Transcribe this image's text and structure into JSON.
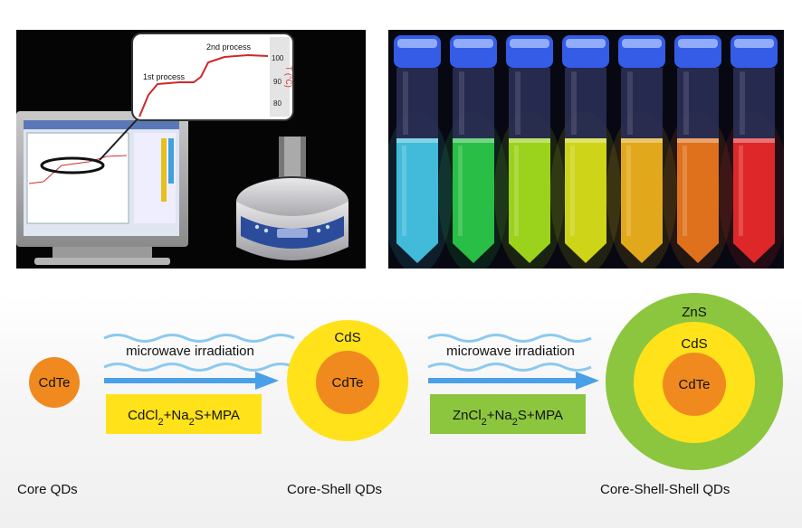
{
  "inset_plot": {
    "annotations": [
      "1st process",
      "2nd process"
    ],
    "y_ticks": [
      "100",
      "90",
      "80"
    ],
    "y_axis_label": "T (°C)"
  },
  "vials": {
    "colors": [
      "#45c9e8",
      "#2ccc4a",
      "#a6e21c",
      "#dde419",
      "#f2b41c",
      "#f07a1e",
      "#ee2a2a"
    ]
  },
  "steps": [
    {
      "label": "microwave irradiation",
      "reagent_parts": [
        "CdCl",
        "2",
        "+Na",
        "2",
        "S+MPA"
      ]
    },
    {
      "label": "microwave irradiation",
      "reagent_parts": [
        "ZnCl",
        "2",
        "+Na",
        "2",
        "S+MPA"
      ]
    }
  ],
  "particles": {
    "core": {
      "core_label": "CdTe",
      "caption": "Core QDs"
    },
    "core_shell": {
      "core_label": "CdTe",
      "shell_label": "CdS",
      "caption": "Core-Shell QDs"
    },
    "core_shell_shell": {
      "core_label": "CdTe",
      "shell1_label": "CdS",
      "shell2_label": "ZnS",
      "caption": "Core-Shell-Shell QDs"
    }
  },
  "colors": {
    "core": "#f08a1f",
    "cds_shell": "#ffe21a",
    "zns_shell": "#8cc63f",
    "reagent_box_1": "#ffe21a",
    "reagent_box_2": "#8cc63f",
    "arrow": "#4aa0e6"
  }
}
